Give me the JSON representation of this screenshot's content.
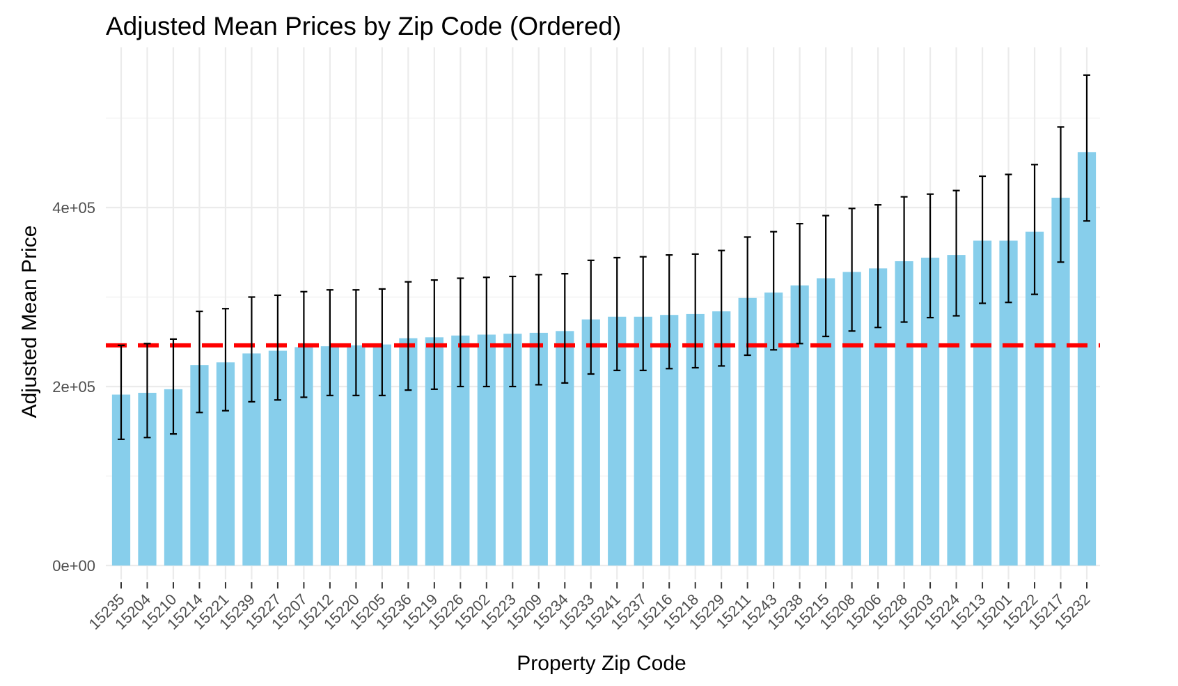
{
  "chart_data": {
    "type": "bar",
    "title": "Adjusted Mean Prices by Zip Code (Ordered)",
    "xlabel": "Property Zip Code",
    "ylabel": "Adjusted Mean Price",
    "ylim": [
      0,
      550000
    ],
    "y_ticks": [
      0,
      200000,
      400000
    ],
    "y_tick_labels": [
      "0e+00",
      "2e+05",
      "4e+05"
    ],
    "grid": true,
    "bar_color": "#87CEEB",
    "error_bar_color": "#000000",
    "reference_line": {
      "value": 246000,
      "color": "#FF0000",
      "style": "dashed"
    },
    "categories": [
      "15235",
      "15204",
      "15210",
      "15214",
      "15221",
      "15239",
      "15227",
      "15207",
      "15212",
      "15220",
      "15205",
      "15236",
      "15219",
      "15226",
      "15202",
      "15223",
      "15209",
      "15234",
      "15233",
      "15241",
      "15237",
      "15216",
      "15218",
      "15229",
      "15211",
      "15243",
      "15238",
      "15215",
      "15208",
      "15206",
      "15228",
      "15203",
      "15224",
      "15213",
      "15201",
      "15222",
      "15217",
      "15232"
    ],
    "values": [
      191000,
      193000,
      197000,
      224000,
      227000,
      237000,
      240000,
      244000,
      245000,
      246000,
      247000,
      254000,
      255000,
      257000,
      258000,
      259000,
      260000,
      262000,
      275000,
      278000,
      278000,
      280000,
      281000,
      284000,
      299000,
      305000,
      313000,
      321000,
      328000,
      332000,
      340000,
      344000,
      347000,
      363000,
      363000,
      373000,
      411000,
      462000
    ],
    "error_low": [
      141000,
      143000,
      147000,
      171000,
      173000,
      183000,
      185000,
      188000,
      190000,
      190000,
      190000,
      196000,
      197000,
      200000,
      200000,
      200000,
      202000,
      204000,
      214000,
      218000,
      218000,
      220000,
      221000,
      223000,
      235000,
      241000,
      248000,
      256000,
      262000,
      266000,
      272000,
      277000,
      279000,
      293000,
      294000,
      303000,
      339000,
      385000
    ],
    "error_high": [
      246000,
      248000,
      253000,
      284000,
      287000,
      300000,
      302000,
      306000,
      308000,
      308000,
      309000,
      317000,
      319000,
      321000,
      322000,
      323000,
      325000,
      326000,
      341000,
      344000,
      345000,
      347000,
      348000,
      352000,
      367000,
      373000,
      382000,
      391000,
      399000,
      403000,
      412000,
      415000,
      419000,
      435000,
      437000,
      448000,
      490000,
      548000
    ]
  }
}
